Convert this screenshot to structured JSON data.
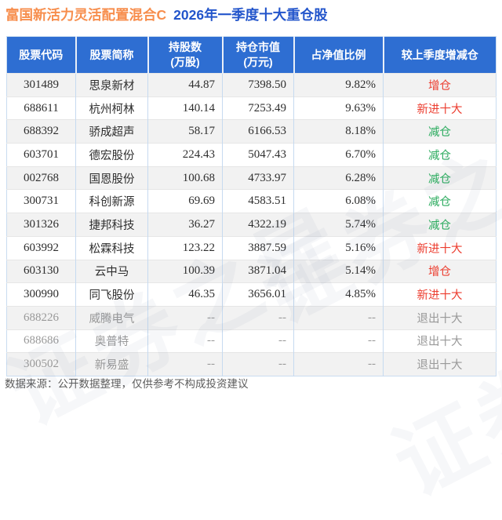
{
  "title": {
    "fund_name": "富国新活力灵活配置混合C",
    "report_period": "2026年一季度十大重仓股"
  },
  "colors": {
    "header_bg": "#2e6ed2",
    "title_orange": "#f78e4d",
    "title_blue": "#2355cb",
    "increase_red": "#ec3d2f",
    "decrease_green": "#2bab5e",
    "row_alt_bg": "#f2f2f2",
    "exited_text": "#999999"
  },
  "chart_data": {
    "type": "table",
    "title": "富国新活力灵活配置混合C 2026年一季度十大重仓股",
    "columns": [
      {
        "lines": [
          "股票代码"
        ]
      },
      {
        "lines": [
          "股票简称"
        ]
      },
      {
        "lines": [
          "持股数",
          "(万股)"
        ]
      },
      {
        "lines": [
          "持仓市值",
          "(万元)"
        ]
      },
      {
        "lines": [
          "占净值比例"
        ]
      },
      {
        "lines": [
          "较上季度增减仓"
        ]
      }
    ],
    "rows": [
      {
        "code": "301489",
        "name": "思泉新材",
        "shares": "44.87",
        "value": "7398.50",
        "ratio": "9.82%",
        "change": "增仓",
        "change_color": "red",
        "exited": false
      },
      {
        "code": "688611",
        "name": "杭州柯林",
        "shares": "140.14",
        "value": "7253.49",
        "ratio": "9.63%",
        "change": "新进十大",
        "change_color": "red",
        "exited": false
      },
      {
        "code": "688392",
        "name": "骄成超声",
        "shares": "58.17",
        "value": "6166.53",
        "ratio": "8.18%",
        "change": "减仓",
        "change_color": "green",
        "exited": false
      },
      {
        "code": "603701",
        "name": "德宏股份",
        "shares": "224.43",
        "value": "5047.43",
        "ratio": "6.70%",
        "change": "减仓",
        "change_color": "green",
        "exited": false
      },
      {
        "code": "002768",
        "name": "国恩股份",
        "shares": "100.68",
        "value": "4733.97",
        "ratio": "6.28%",
        "change": "减仓",
        "change_color": "green",
        "exited": false
      },
      {
        "code": "300731",
        "name": "科创新源",
        "shares": "69.69",
        "value": "4583.51",
        "ratio": "6.08%",
        "change": "减仓",
        "change_color": "green",
        "exited": false
      },
      {
        "code": "301326",
        "name": "捷邦科技",
        "shares": "36.27",
        "value": "4322.19",
        "ratio": "5.74%",
        "change": "减仓",
        "change_color": "green",
        "exited": false
      },
      {
        "code": "603992",
        "name": "松霖科技",
        "shares": "123.22",
        "value": "3887.59",
        "ratio": "5.16%",
        "change": "新进十大",
        "change_color": "red",
        "exited": false
      },
      {
        "code": "603130",
        "name": "云中马",
        "shares": "100.39",
        "value": "3871.04",
        "ratio": "5.14%",
        "change": "增仓",
        "change_color": "red",
        "exited": false
      },
      {
        "code": "300990",
        "name": "同飞股份",
        "shares": "46.35",
        "value": "3656.01",
        "ratio": "4.85%",
        "change": "新进十大",
        "change_color": "red",
        "exited": false
      },
      {
        "code": "688226",
        "name": "威腾电气",
        "shares": "--",
        "value": "--",
        "ratio": "--",
        "change": "退出十大",
        "change_color": "green",
        "exited": true
      },
      {
        "code": "688686",
        "name": "奥普特",
        "shares": "--",
        "value": "--",
        "ratio": "--",
        "change": "退出十大",
        "change_color": "green",
        "exited": true
      },
      {
        "code": "300502",
        "name": "新易盛",
        "shares": "--",
        "value": "--",
        "ratio": "--",
        "change": "退出十大",
        "change_color": "green",
        "exited": true
      }
    ]
  },
  "footer": {
    "source_text": "数据来源：公开数据整理，仅供参考不构成投资建议"
  },
  "meta": {
    "watermark": "证券之星"
  }
}
